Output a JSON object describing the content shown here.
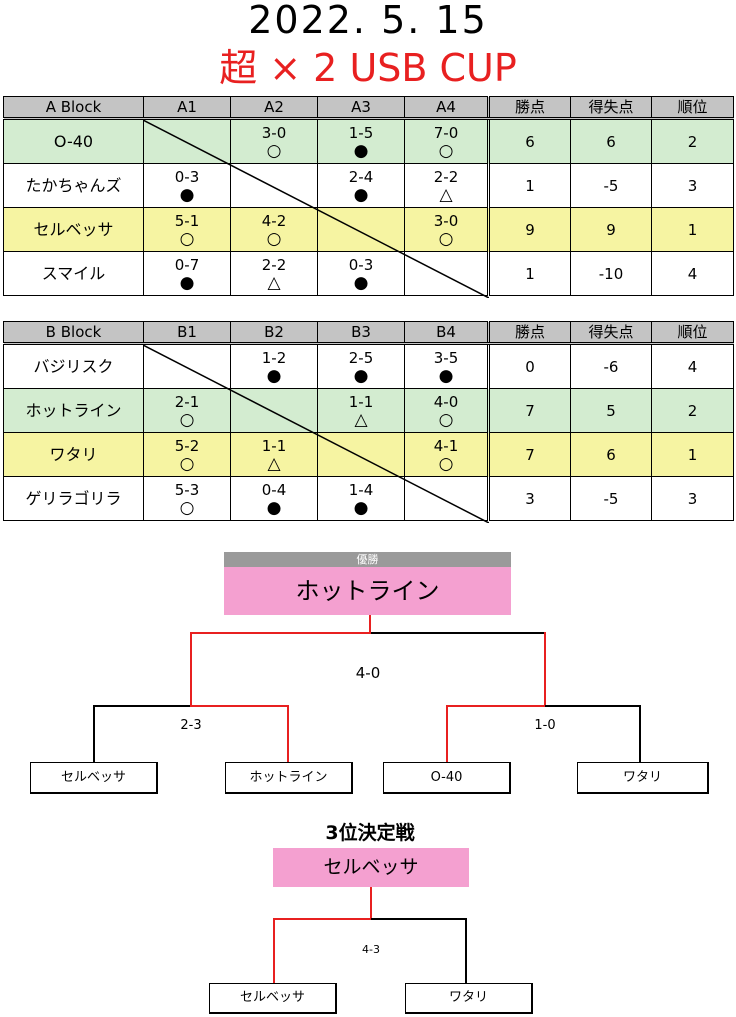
{
  "title": {
    "date": "2022. 5. 15",
    "event": "超 × 2 USB CUP"
  },
  "blocks": [
    {
      "header": [
        "A Block",
        "A1",
        "A2",
        "A3",
        "A4",
        "勝点",
        "得失点",
        "順位"
      ],
      "rows": [
        {
          "team": "O-40",
          "highlight": "green",
          "results": [
            null,
            {
              "score": "3-0",
              "mark": "○"
            },
            {
              "score": "1-5",
              "mark": "●"
            },
            {
              "score": "7-0",
              "mark": "○"
            }
          ],
          "points": "6",
          "diff": "6",
          "rank": "2"
        },
        {
          "team": "たかちゃんズ",
          "highlight": "none",
          "results": [
            {
              "score": "0-3",
              "mark": "●"
            },
            null,
            {
              "score": "2-4",
              "mark": "●"
            },
            {
              "score": "2-2",
              "mark": "△"
            }
          ],
          "points": "1",
          "diff": "-5",
          "rank": "3"
        },
        {
          "team": "セルベッサ",
          "highlight": "yellow",
          "results": [
            {
              "score": "5-1",
              "mark": "○"
            },
            {
              "score": "4-2",
              "mark": "○"
            },
            null,
            {
              "score": "3-0",
              "mark": "○"
            }
          ],
          "points": "9",
          "diff": "9",
          "rank": "1"
        },
        {
          "team": "スマイル",
          "highlight": "none",
          "results": [
            {
              "score": "0-7",
              "mark": "●"
            },
            {
              "score": "2-2",
              "mark": "△"
            },
            {
              "score": "0-3",
              "mark": "●"
            },
            null
          ],
          "points": "1",
          "diff": "-10",
          "rank": "4"
        }
      ]
    },
    {
      "header": [
        "B Block",
        "B1",
        "B2",
        "B3",
        "B4",
        "勝点",
        "得失点",
        "順位"
      ],
      "rows": [
        {
          "team": "バジリスク",
          "highlight": "none",
          "results": [
            null,
            {
              "score": "1-2",
              "mark": "●"
            },
            {
              "score": "2-5",
              "mark": "●"
            },
            {
              "score": "3-5",
              "mark": "●"
            }
          ],
          "points": "0",
          "diff": "-6",
          "rank": "4"
        },
        {
          "team": "ホットライン",
          "highlight": "green",
          "results": [
            {
              "score": "2-1",
              "mark": "○"
            },
            null,
            {
              "score": "1-1",
              "mark": "△"
            },
            {
              "score": "4-0",
              "mark": "○"
            }
          ],
          "points": "7",
          "diff": "5",
          "rank": "2"
        },
        {
          "team": "ワタリ",
          "highlight": "yellow",
          "results": [
            {
              "score": "5-2",
              "mark": "○"
            },
            {
              "score": "1-1",
              "mark": "△"
            },
            null,
            {
              "score": "4-1",
              "mark": "○"
            }
          ],
          "points": "7",
          "diff": "6",
          "rank": "1"
        },
        {
          "team": "ゲリラゴリラ",
          "highlight": "none",
          "results": [
            {
              "score": "5-3",
              "mark": "○"
            },
            {
              "score": "0-4",
              "mark": "●"
            },
            {
              "score": "1-4",
              "mark": "●"
            },
            null
          ],
          "points": "3",
          "diff": "-5",
          "rank": "3"
        }
      ]
    }
  ],
  "final": {
    "label": "優勝",
    "champion": "ホットライン",
    "final_score": "4-0",
    "semi_left_score": "2-3",
    "semi_right_score": "1-0",
    "teams": [
      "セルベッサ",
      "ホットライン",
      "O-40",
      "ワタリ"
    ]
  },
  "third": {
    "label": "3位決定戦",
    "winner": "セルベッサ",
    "score": "4-3",
    "teams": [
      "セルベッサ",
      "ワタリ"
    ]
  },
  "colors": {
    "winner_path": "#e82020",
    "green_row": "#d3ecd0",
    "yellow_row": "#f6f4a2",
    "champion_box": "#f4a0d0",
    "header": "#c4c4c4"
  }
}
